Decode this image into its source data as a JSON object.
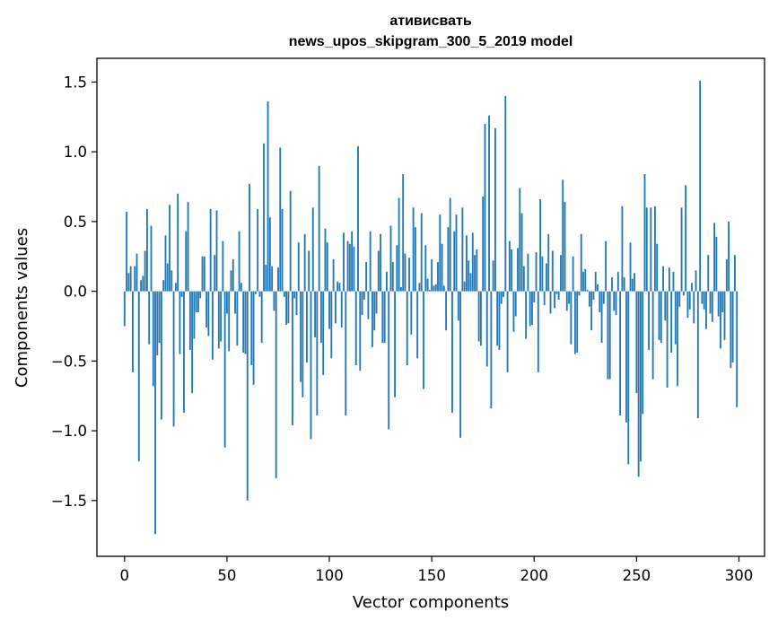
{
  "chart_data": {
    "type": "bar",
    "title_line1": "ативисвать",
    "title_line2": "news_upos_skipgram_300_5_2019 model",
    "xlabel": "Vector components",
    "ylabel": "Components values",
    "xlim": [
      -13.5,
      312.5
    ],
    "ylim": [
      -1.9,
      1.67
    ],
    "xticks": [
      0,
      50,
      100,
      150,
      200,
      250,
      300
    ],
    "xtick_labels": [
      "0",
      "50",
      "100",
      "150",
      "200",
      "250",
      "300"
    ],
    "yticks": [
      -1.5,
      -1.0,
      -0.5,
      0.0,
      0.5,
      1.0,
      1.5
    ],
    "ytick_labels": [
      "−1.5",
      "−1.0",
      "−0.5",
      "0.0",
      "0.5",
      "1.0",
      "1.5"
    ],
    "bar_color": "#1f77b4",
    "grid": false,
    "values": [
      -0.25,
      0.57,
      0.13,
      0.18,
      -0.58,
      0.18,
      0.27,
      -1.22,
      0.08,
      0.11,
      0.29,
      0.59,
      -0.38,
      0.47,
      -0.68,
      -1.74,
      -0.46,
      -0.37,
      -0.92,
      0.08,
      0.4,
      0.2,
      0.62,
      0.15,
      -0.97,
      0.06,
      0.7,
      -0.45,
      -0.04,
      -0.87,
      0.43,
      0.64,
      -0.42,
      -0.73,
      -0.34,
      -0.15,
      -0.15,
      -0.05,
      0.25,
      0.25,
      -0.26,
      -0.32,
      0.59,
      -0.49,
      0.26,
      0.58,
      -0.41,
      -0.36,
      0.36,
      -1.12,
      -0.16,
      -0.43,
      0.15,
      0.23,
      -0.16,
      -0.39,
      0.43,
      0.06,
      -0.44,
      -0.45,
      -1.5,
      0.77,
      -0.53,
      -0.67,
      -0.02,
      0.59,
      -0.04,
      -0.37,
      1.06,
      0.19,
      1.36,
      0.53,
      0.18,
      -0.14,
      -1.34,
      0.17,
      1.03,
      0.59,
      -0.04,
      -0.24,
      -0.23,
      0.72,
      -0.96,
      -0.05,
      -0.17,
      0.35,
      -0.65,
      -0.76,
      0.41,
      -0.51,
      0.29,
      -1.06,
      0.6,
      -0.33,
      -0.89,
      0.9,
      -0.37,
      -0.6,
      0.45,
      0.35,
      -0.27,
      -0.48,
      0.23,
      -0.23,
      0.07,
      0.06,
      -0.26,
      0.42,
      -0.89,
      0.36,
      0.34,
      0.43,
      0.32,
      -0.53,
      1.04,
      -0.57,
      -0.17,
      -0.06,
      0.21,
      -0.2,
      0.43,
      -0.4,
      -0.28,
      -0.16,
      0.29,
      0.41,
      -0.37,
      -0.37,
      0.14,
      -0.99,
      0.47,
      0.21,
      -0.76,
      0.33,
      0.67,
      0.03,
      0.84,
      0.27,
      -0.53,
      0.24,
      -0.31,
      0.6,
      0.46,
      -0.48,
      0.06,
      0.56,
      -0.7,
      0.33,
      0.09,
      0.01,
      0.23,
      0.04,
      0.05,
      0.21,
      0.55,
      0.34,
      0.04,
      -0.28,
      0.46,
      0.67,
      -0.87,
      0.43,
      0.55,
      -0.21,
      -1.05,
      0.6,
      0.07,
      0.4,
      0.22,
      0.13,
      0.42,
      0.26,
      0.3,
      -0.36,
      -0.39,
      0.68,
      1.2,
      -0.54,
      1.26,
      -0.84,
      0.22,
      1.17,
      -0.39,
      -0.42,
      -0.09,
      -0.04,
      1.4,
      -0.58,
      0.36,
      0.3,
      -0.29,
      -0.18,
      0.31,
      0.74,
      0.56,
      0.18,
      -0.34,
      0.27,
      -0.25,
      -0.24,
      -0.08,
      0.28,
      -0.58,
      0.66,
      0.25,
      -0.1,
      0.2,
      0.41,
      -0.16,
      0.29,
      -0.12,
      -0.02,
      -0.06,
      0.26,
      0.8,
      0.64,
      -0.14,
      -0.09,
      -0.38,
      0.25,
      -0.45,
      -0.44,
      -0.03,
      0.41,
      0.14,
      0.16,
      0.01,
      -0.11,
      -0.28,
      -0.06,
      0.14,
      0.05,
      -0.15,
      -0.37,
      -0.09,
      0.36,
      -0.63,
      -0.63,
      0.1,
      -0.14,
      -0.17,
      0.14,
      -0.89,
      0.61,
      0.1,
      -0.94,
      -1.24,
      0.35,
      0.09,
      0.13,
      -0.73,
      -1.33,
      -1.22,
      -0.88,
      0.84,
      0.6,
      -0.42,
      0.6,
      -0.63,
      0.61,
      0.34,
      -0.35,
      -0.37,
      0.18,
      -0.21,
      -0.69,
      0.17,
      -0.44,
      0.14,
      -0.38,
      -0.68,
      -0.11,
      0.6,
      -0.03,
      0.76,
      -0.19,
      -0.13,
      0.06,
      -0.23,
      0.15,
      -0.91,
      1.51,
      -0.09,
      -0.13,
      -0.27,
      0.26,
      -0.16,
      -0.22,
      0.49,
      0.39,
      -0.18,
      -0.41,
      -0.15,
      -0.35,
      0.23,
      0.5,
      -0.55,
      -0.51,
      0.26,
      -0.83
    ]
  }
}
